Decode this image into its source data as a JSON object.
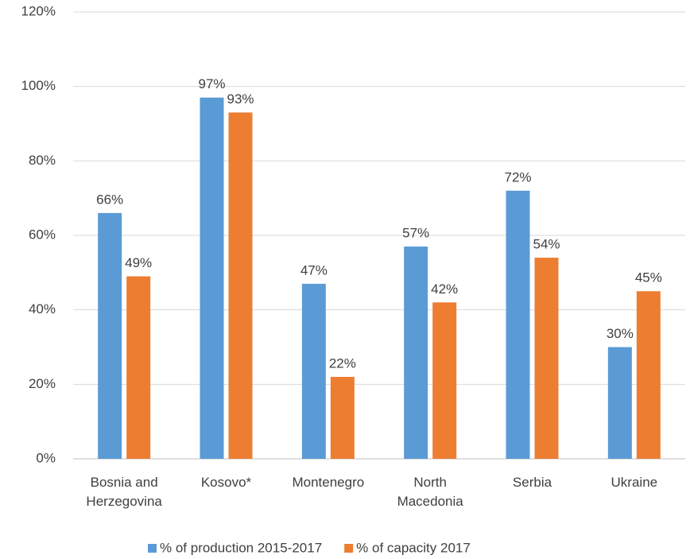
{
  "chart_data": {
    "type": "bar",
    "categories": [
      "Bosnia and Herzegovina",
      "Kosovo*",
      "Montenegro",
      "North Macedonia",
      "Serbia",
      "Ukraine"
    ],
    "series": [
      {
        "name": "% of production 2015-2017",
        "color": "#5b9bd5",
        "values": [
          66,
          97,
          47,
          57,
          72,
          30
        ],
        "value_labels": [
          "66%",
          "97%",
          "47%",
          "57%",
          "72%",
          "30%"
        ]
      },
      {
        "name": "% of capacity 2017",
        "color": "#ed7d31",
        "values": [
          49,
          93,
          22,
          42,
          54,
          45
        ],
        "value_labels": [
          "49%",
          "93%",
          "22%",
          "42%",
          "54%",
          "45%"
        ]
      }
    ],
    "ylim": [
      0,
      120
    ],
    "yticks": [
      {
        "value": 0,
        "label": "0%"
      },
      {
        "value": 20,
        "label": "20%"
      },
      {
        "value": 40,
        "label": "40%"
      },
      {
        "value": 60,
        "label": "60%"
      },
      {
        "value": 80,
        "label": "80%"
      },
      {
        "value": 100,
        "label": "100%"
      },
      {
        "value": 120,
        "label": "120%"
      }
    ],
    "grid": true,
    "legend": "bottom"
  }
}
